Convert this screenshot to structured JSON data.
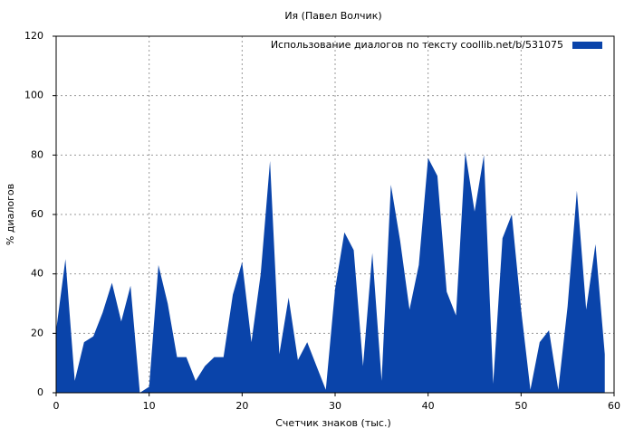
{
  "chart_data": {
    "type": "area",
    "title": "Ия (Павел Волчик)",
    "x_label": "Счетчик знаков (тыс.)",
    "y_label": "% диалогов",
    "x": [
      0,
      1,
      2,
      3,
      4,
      5,
      6,
      7,
      8,
      9,
      10,
      11,
      12,
      13,
      14,
      15,
      16,
      17,
      18,
      19,
      20,
      21,
      22,
      23,
      24,
      25,
      26,
      27,
      28,
      29,
      30,
      31,
      32,
      33,
      34,
      35,
      36,
      37,
      38,
      39,
      40,
      41,
      42,
      43,
      44,
      45,
      46,
      47,
      48,
      49,
      50,
      51,
      52,
      53,
      54,
      55,
      56,
      57,
      58,
      59
    ],
    "series": [
      {
        "name": "Использование диалогов по тексту  coollib.net/b/531075",
        "color": "#0a44aa",
        "values": [
          21,
          45,
          4,
          17,
          19,
          27,
          37,
          24,
          36,
          0,
          2,
          43,
          30,
          12,
          12,
          4,
          9,
          12,
          12,
          33,
          44,
          17,
          40,
          78,
          13,
          32,
          11,
          17,
          9,
          1,
          35,
          54,
          48,
          9,
          47,
          4,
          70,
          51,
          28,
          43,
          79,
          73,
          34,
          26,
          81,
          61,
          80,
          3,
          52,
          60,
          28,
          1,
          17,
          21,
          1,
          29,
          68,
          28,
          50,
          13
        ]
      }
    ],
    "xlim": [
      0,
      60
    ],
    "xticks": [
      0,
      10,
      20,
      30,
      40,
      50,
      60
    ],
    "ylim": [
      0,
      120
    ],
    "yticks": [
      0,
      20,
      40,
      60,
      80,
      100,
      120
    ],
    "grid": true,
    "legend": "top-right"
  }
}
